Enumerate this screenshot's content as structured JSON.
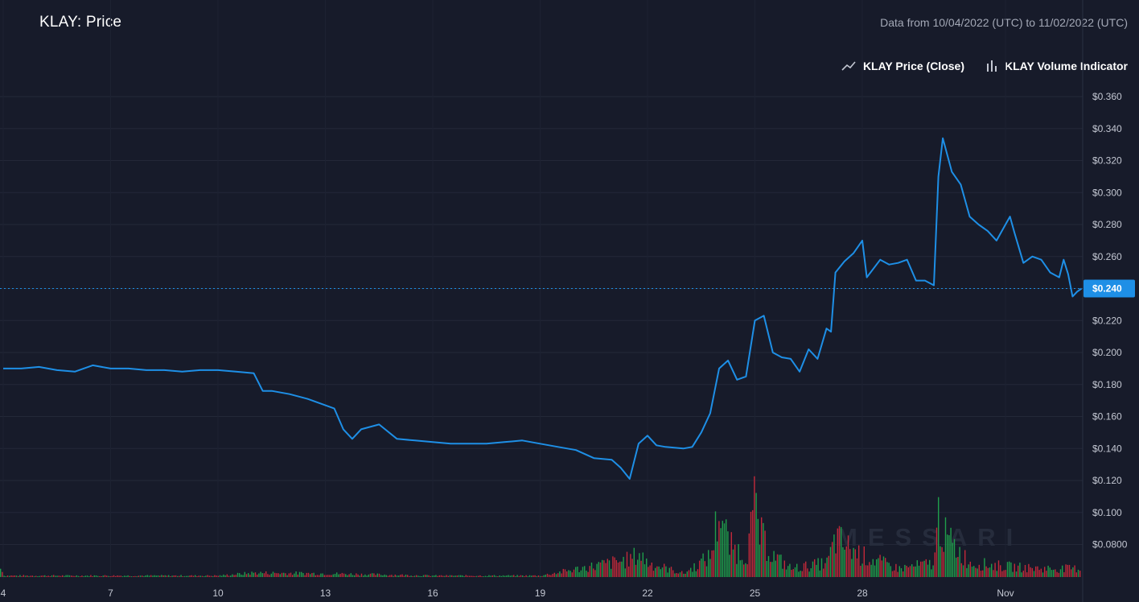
{
  "header": {
    "title": "KLAY: Price",
    "range_note": "Data from 10/04/2022 (UTC) to 11/02/2022 (UTC)"
  },
  "legend": {
    "price_label": "KLAY Price (Close)",
    "volume_label": "KLAY Volume Indicator",
    "price_icon": "line-chart-icon",
    "volume_icon": "bar-chart-icon"
  },
  "watermark": "MESSARI",
  "colors": {
    "background": "#171b2a",
    "price_line": "#1e8fe6",
    "volume_up": "#1f9e4b",
    "volume_down": "#c2293a",
    "grid": "#232838",
    "last_price_tag": "#1e8fe6"
  },
  "chart_data": {
    "type": "line",
    "x_unit": "date",
    "y_unit": "USD",
    "last_price_label": "$0.240",
    "last_price": 0.24,
    "y_ticks": [
      "$0.360",
      "$0.340",
      "$0.320",
      "$0.300",
      "$0.280",
      "$0.260",
      "$0.240",
      "$0.220",
      "$0.200",
      "$0.180",
      "$0.160",
      "$0.140",
      "$0.120",
      "$0.100",
      "$0.0800"
    ],
    "y_tick_values": [
      0.36,
      0.34,
      0.32,
      0.3,
      0.28,
      0.26,
      0.24,
      0.22,
      0.2,
      0.18,
      0.16,
      0.14,
      0.12,
      0.1,
      0.08
    ],
    "x_ticks": [
      {
        "label": "4",
        "date": "2022-10-04"
      },
      {
        "label": "7",
        "date": "2022-10-07"
      },
      {
        "label": "10",
        "date": "2022-10-10"
      },
      {
        "label": "13",
        "date": "2022-10-13"
      },
      {
        "label": "16",
        "date": "2022-10-16"
      },
      {
        "label": "19",
        "date": "2022-10-19"
      },
      {
        "label": "22",
        "date": "2022-10-22"
      },
      {
        "label": "25",
        "date": "2022-10-25"
      },
      {
        "label": "28",
        "date": "2022-10-28"
      },
      {
        "label": "Nov",
        "date": "2022-11-01"
      }
    ],
    "series": [
      {
        "type": "line",
        "points": [
          [
            "2022-10-04T00:00",
            0.19
          ],
          [
            "2022-10-04T12:00",
            0.19
          ],
          [
            "2022-10-05T00:00",
            0.191
          ],
          [
            "2022-10-05T12:00",
            0.189
          ],
          [
            "2022-10-06T00:00",
            0.188
          ],
          [
            "2022-10-06T12:00",
            0.192
          ],
          [
            "2022-10-07T00:00",
            0.19
          ],
          [
            "2022-10-07T12:00",
            0.19
          ],
          [
            "2022-10-08T00:00",
            0.189
          ],
          [
            "2022-10-08T12:00",
            0.189
          ],
          [
            "2022-10-09T00:00",
            0.188
          ],
          [
            "2022-10-09T12:00",
            0.189
          ],
          [
            "2022-10-10T00:00",
            0.189
          ],
          [
            "2022-10-10T12:00",
            0.188
          ],
          [
            "2022-10-11T00:00",
            0.187
          ],
          [
            "2022-10-11T06:00",
            0.176
          ],
          [
            "2022-10-11T12:00",
            0.176
          ],
          [
            "2022-10-12T00:00",
            0.174
          ],
          [
            "2022-10-12T12:00",
            0.171
          ],
          [
            "2022-10-13T00:00",
            0.167
          ],
          [
            "2022-10-13T06:00",
            0.165
          ],
          [
            "2022-10-13T12:00",
            0.152
          ],
          [
            "2022-10-13T18:00",
            0.146
          ],
          [
            "2022-10-14T00:00",
            0.152
          ],
          [
            "2022-10-14T12:00",
            0.155
          ],
          [
            "2022-10-15T00:00",
            0.146
          ],
          [
            "2022-10-15T12:00",
            0.145
          ],
          [
            "2022-10-16T00:00",
            0.144
          ],
          [
            "2022-10-16T12:00",
            0.143
          ],
          [
            "2022-10-17T00:00",
            0.143
          ],
          [
            "2022-10-17T12:00",
            0.143
          ],
          [
            "2022-10-18T00:00",
            0.144
          ],
          [
            "2022-10-18T12:00",
            0.145
          ],
          [
            "2022-10-19T00:00",
            0.143
          ],
          [
            "2022-10-19T12:00",
            0.141
          ],
          [
            "2022-10-20T00:00",
            0.139
          ],
          [
            "2022-10-20T12:00",
            0.134
          ],
          [
            "2022-10-21T00:00",
            0.133
          ],
          [
            "2022-10-21T06:00",
            0.128
          ],
          [
            "2022-10-21T12:00",
            0.121
          ],
          [
            "2022-10-21T18:00",
            0.143
          ],
          [
            "2022-10-22T00:00",
            0.148
          ],
          [
            "2022-10-22T06:00",
            0.142
          ],
          [
            "2022-10-22T12:00",
            0.141
          ],
          [
            "2022-10-23T00:00",
            0.14
          ],
          [
            "2022-10-23T06:00",
            0.141
          ],
          [
            "2022-10-23T12:00",
            0.15
          ],
          [
            "2022-10-23T18:00",
            0.162
          ],
          [
            "2022-10-24T00:00",
            0.19
          ],
          [
            "2022-10-24T06:00",
            0.195
          ],
          [
            "2022-10-24T12:00",
            0.183
          ],
          [
            "2022-10-24T18:00",
            0.185
          ],
          [
            "2022-10-25T00:00",
            0.22
          ],
          [
            "2022-10-25T06:00",
            0.223
          ],
          [
            "2022-10-25T12:00",
            0.2
          ],
          [
            "2022-10-25T18:00",
            0.197
          ],
          [
            "2022-10-26T00:00",
            0.196
          ],
          [
            "2022-10-26T06:00",
            0.188
          ],
          [
            "2022-10-26T12:00",
            0.202
          ],
          [
            "2022-10-26T18:00",
            0.196
          ],
          [
            "2022-10-27T00:00",
            0.215
          ],
          [
            "2022-10-27T03:00",
            0.213
          ],
          [
            "2022-10-27T06:00",
            0.25
          ],
          [
            "2022-10-27T12:00",
            0.257
          ],
          [
            "2022-10-27T18:00",
            0.262
          ],
          [
            "2022-10-28T00:00",
            0.27
          ],
          [
            "2022-10-28T03:00",
            0.247
          ],
          [
            "2022-10-28T12:00",
            0.258
          ],
          [
            "2022-10-28T18:00",
            0.255
          ],
          [
            "2022-10-29T00:00",
            0.256
          ],
          [
            "2022-10-29T06:00",
            0.258
          ],
          [
            "2022-10-29T12:00",
            0.245
          ],
          [
            "2022-10-29T18:00",
            0.245
          ],
          [
            "2022-10-30T00:00",
            0.242
          ],
          [
            "2022-10-30T03:00",
            0.31
          ],
          [
            "2022-10-30T06:00",
            0.334
          ],
          [
            "2022-10-30T12:00",
            0.313
          ],
          [
            "2022-10-30T18:00",
            0.305
          ],
          [
            "2022-10-31T00:00",
            0.285
          ],
          [
            "2022-10-31T06:00",
            0.28
          ],
          [
            "2022-10-31T12:00",
            0.276
          ],
          [
            "2022-10-31T18:00",
            0.27
          ],
          [
            "2022-11-01T00:00",
            0.28
          ],
          [
            "2022-11-01T03:00",
            0.285
          ],
          [
            "2022-11-01T06:00",
            0.275
          ],
          [
            "2022-11-01T12:00",
            0.256
          ],
          [
            "2022-11-01T18:00",
            0.26
          ],
          [
            "2022-11-02T00:00",
            0.258
          ],
          [
            "2022-11-02T06:00",
            0.25
          ],
          [
            "2022-11-02T12:00",
            0.247
          ],
          [
            "2022-11-02T15:00",
            0.258
          ],
          [
            "2022-11-02T18:00",
            0.249
          ],
          [
            "2022-11-02T21:00",
            0.235
          ],
          [
            "2022-11-03T00:00",
            0.238
          ],
          [
            "2022-11-03T03:00",
            0.24
          ]
        ]
      }
    ],
    "volume": {
      "note": "relative volume level 0-1 by period (sampled)",
      "levels": [
        [
          "2022-10-04",
          0.02
        ],
        [
          "2022-10-07",
          0.02
        ],
        [
          "2022-10-10",
          0.02
        ],
        [
          "2022-10-11",
          0.06
        ],
        [
          "2022-10-13",
          0.05
        ],
        [
          "2022-10-14",
          0.04
        ],
        [
          "2022-10-16",
          0.02
        ],
        [
          "2022-10-19",
          0.02
        ],
        [
          "2022-10-21T12:00",
          0.25
        ],
        [
          "2022-10-21T18:00",
          0.33
        ],
        [
          "2022-10-22",
          0.2
        ],
        [
          "2022-10-23",
          0.05
        ],
        [
          "2022-10-23T18:00",
          0.3
        ],
        [
          "2022-10-24T00:00",
          1.0
        ],
        [
          "2022-10-24T06:00",
          0.45
        ],
        [
          "2022-10-24T18:00",
          0.3
        ],
        [
          "2022-10-25T00:00",
          1.05
        ],
        [
          "2022-10-25T03:00",
          0.6
        ],
        [
          "2022-10-25T12:00",
          0.3
        ],
        [
          "2022-10-26",
          0.12
        ],
        [
          "2022-10-27",
          0.2
        ],
        [
          "2022-10-27T06:00",
          0.55
        ],
        [
          "2022-10-27T12:00",
          0.45
        ],
        [
          "2022-10-28",
          0.3
        ],
        [
          "2022-10-29",
          0.12
        ],
        [
          "2022-10-30T00:00",
          0.2
        ],
        [
          "2022-10-30T03:00",
          0.95
        ],
        [
          "2022-10-30T06:00",
          0.6
        ],
        [
          "2022-10-31",
          0.2
        ],
        [
          "2022-11-01",
          0.15
        ],
        [
          "2022-11-02",
          0.12
        ]
      ]
    }
  }
}
